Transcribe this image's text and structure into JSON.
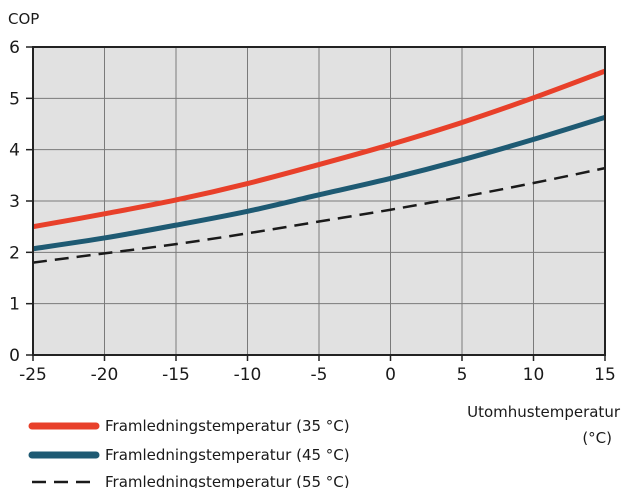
{
  "chart_data": {
    "type": "line",
    "ylabel": "COP",
    "xlabel_lines": [
      "Utomhustemperatur",
      "(°C)"
    ],
    "xlim": [
      -25,
      15
    ],
    "ylim": [
      0,
      6
    ],
    "x_ticks": [
      "-25",
      "-20",
      "-15",
      "-10",
      "-5",
      "0",
      "5",
      "10",
      "15"
    ],
    "y_ticks": [
      "0",
      "1",
      "2",
      "3",
      "4",
      "5",
      "6"
    ],
    "grid": true,
    "plot_background": "#e1e1e1",
    "legend_position": "bottom-left",
    "series": [
      {
        "name": "Framledningstemperatur (35 °C)",
        "color": "#e8402a",
        "style": "solid",
        "x": [
          -25,
          -20,
          -15,
          -10,
          -5,
          0,
          5,
          10,
          15
        ],
        "y": [
          2.5,
          2.75,
          3.02,
          3.34,
          3.71,
          4.1,
          4.53,
          5.01,
          5.53
        ]
      },
      {
        "name": "Framledningstemperatur (45 °C)",
        "color": "#1e5a73",
        "style": "solid",
        "x": [
          -25,
          -20,
          -15,
          -10,
          -5,
          0,
          5,
          10,
          15
        ],
        "y": [
          2.07,
          2.28,
          2.53,
          2.8,
          3.12,
          3.44,
          3.8,
          4.2,
          4.63
        ]
      },
      {
        "name": "Framledningstemperatur (55 °C)",
        "color": "#1a1a1a",
        "style": "dashed",
        "x": [
          -25,
          -20,
          -15,
          -10,
          -5,
          0,
          5,
          10,
          15
        ],
        "y": [
          1.8,
          1.98,
          2.16,
          2.37,
          2.6,
          2.83,
          3.08,
          3.35,
          3.64
        ]
      }
    ]
  }
}
